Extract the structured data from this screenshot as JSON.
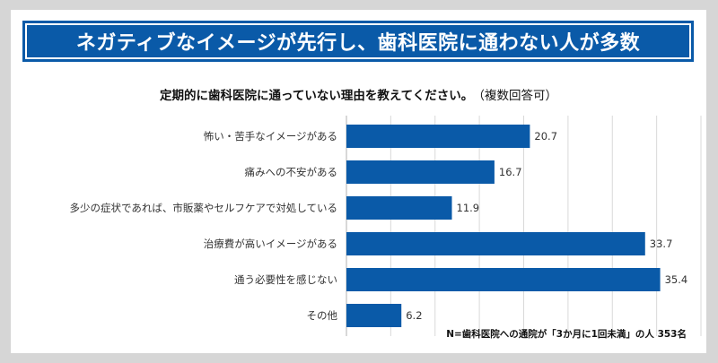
{
  "header": {
    "title": "ネガティブなイメージが先行し、歯科医院に通わない人が多数"
  },
  "question": {
    "text": "定期的に歯科医院に通っていない理由を教えてください。",
    "note": "（複数回答可）"
  },
  "footnote": "N=歯科医院への通院が「3か月に1回未満」の人 353名",
  "colors": {
    "bar": "#0a5aa8",
    "banner": "#0a5aa8",
    "grid": "#d9d9d9"
  },
  "chart_data": {
    "type": "bar",
    "orientation": "horizontal",
    "categories": [
      "怖い・苦手なイメージがある",
      "痛みへの不安がある",
      "多少の症状であれば、市販薬やセルフケアで対処している",
      "治療費が高いイメージがある",
      "通う必要性を感じない",
      "その他"
    ],
    "values": [
      20.7,
      16.7,
      11.9,
      33.7,
      35.4,
      6.2
    ],
    "value_labels": [
      "20.7",
      "16.7",
      "11.9",
      "33.7",
      "35.4",
      "6.2"
    ],
    "unit": "%",
    "xlim": [
      0,
      40
    ],
    "grid": true,
    "title": "定期的に歯科医院に通っていない理由を教えてください。"
  }
}
